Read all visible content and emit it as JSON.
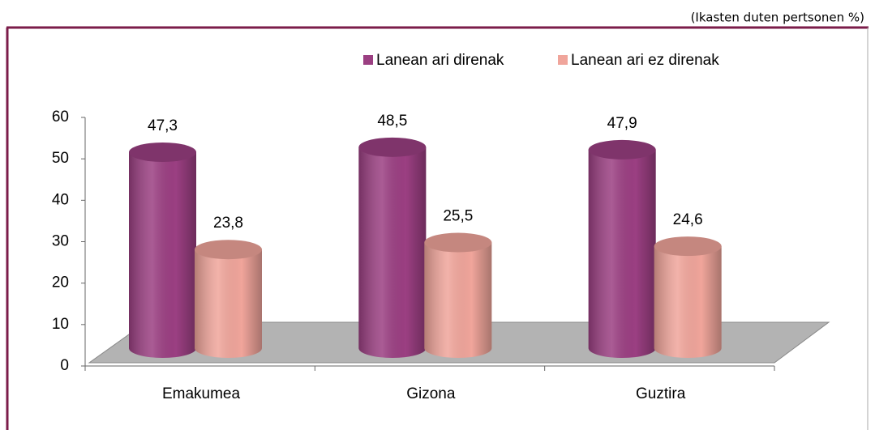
{
  "chart_data": {
    "type": "bar3d",
    "subtitle": "(Ikasten duten pertsonen %)",
    "categories": [
      "Emakumea",
      "Gizona",
      "Guztira"
    ],
    "series": [
      {
        "name": "Lanean ari direnak",
        "color": "#9b3f82",
        "values": [
          47.3,
          48.5,
          47.9
        ],
        "value_labels": [
          "47,3",
          "48,5",
          "47,9"
        ]
      },
      {
        "name": "Lanean ari ez direnak",
        "color": "#f0a59b",
        "values": [
          23.8,
          25.5,
          24.6
        ],
        "value_labels": [
          "23,8",
          "25,5",
          "24,6"
        ]
      }
    ],
    "ylim": [
      0,
      60
    ],
    "yticks": [
      0,
      10,
      20,
      30,
      40,
      50,
      60
    ],
    "legend": "top"
  }
}
